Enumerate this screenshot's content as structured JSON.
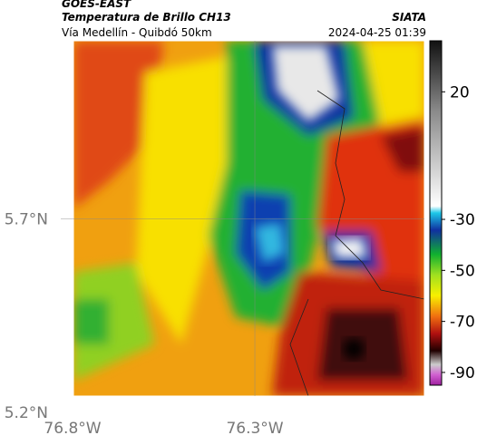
{
  "header": {
    "satellite": "GOES-EAST",
    "title": "Temperatura de Brillo CH13",
    "source": "SIATA",
    "subtitle": "Vía Medellín - Quibdó 50km",
    "datetime": "2024-04-25 01:39"
  },
  "map": {
    "xlim": [
      -76.8,
      -75.83
    ],
    "ylim": [
      5.2,
      6.16
    ],
    "xticks": [
      {
        "value": -76.8,
        "label": "76.8°W"
      },
      {
        "value": -76.3,
        "label": "76.3°W"
      }
    ],
    "yticks": [
      {
        "value": 5.7,
        "label": "5.7°N"
      },
      {
        "value": 5.2,
        "label": "5.2°N"
      }
    ]
  },
  "colorbar": {
    "vlim": [
      -95,
      40
    ],
    "ticks": [
      20,
      -30,
      -50,
      -70,
      -90
    ]
  }
}
